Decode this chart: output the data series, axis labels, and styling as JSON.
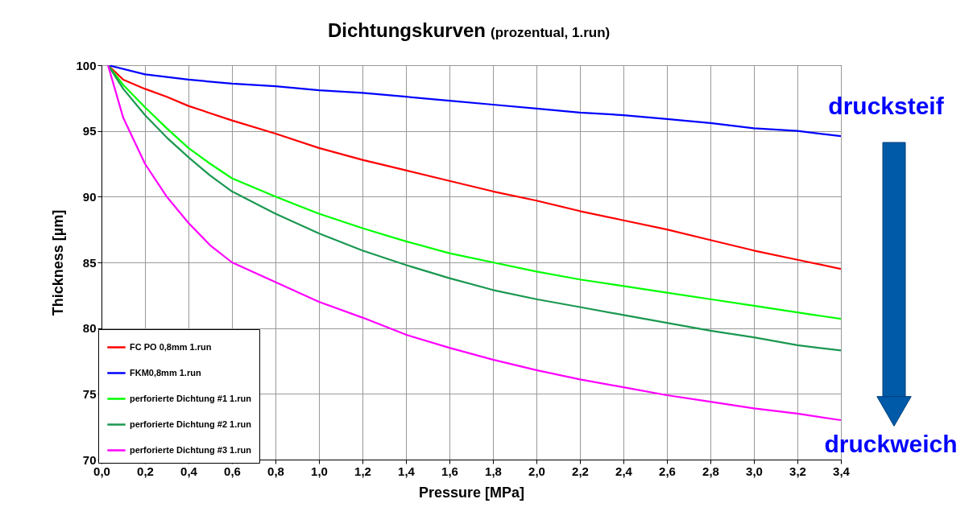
{
  "chart_data": {
    "type": "line",
    "title": "Dichtungskurven",
    "subtitle": "(prozentual, 1.run)",
    "xlabel": "Pressure [MPa]",
    "ylabel": "Thickness [µm]",
    "xlim": [
      0,
      3.4
    ],
    "ylim": [
      70,
      100
    ],
    "xticks": [
      {
        "value": 0,
        "label": "0,0"
      },
      {
        "value": 0.2,
        "label": "0,2"
      },
      {
        "value": 0.4,
        "label": "0,4"
      },
      {
        "value": 0.6,
        "label": "0,6"
      },
      {
        "value": 0.8,
        "label": "0,8"
      },
      {
        "value": 1.0,
        "label": "1,0"
      },
      {
        "value": 1.2,
        "label": "1,2"
      },
      {
        "value": 1.4,
        "label": "1,4"
      },
      {
        "value": 1.6,
        "label": "1,6"
      },
      {
        "value": 1.8,
        "label": "1,8"
      },
      {
        "value": 2.0,
        "label": "2,0"
      },
      {
        "value": 2.2,
        "label": "2,2"
      },
      {
        "value": 2.4,
        "label": "2,4"
      },
      {
        "value": 2.6,
        "label": "2,6"
      },
      {
        "value": 2.8,
        "label": "2,8"
      },
      {
        "value": 3.0,
        "label": "3,0"
      },
      {
        "value": 3.2,
        "label": "3,2"
      },
      {
        "value": 3.4,
        "label": "3,4"
      }
    ],
    "yticks": [
      70,
      75,
      80,
      85,
      90,
      95,
      100
    ],
    "grid": true,
    "legend": "bottom left",
    "marker": "none",
    "line_style": "solid",
    "annotations": [
      "drucksteif",
      "druckweich"
    ],
    "series": [
      {
        "name": "FC PO 0,8mm 1.run",
        "color": "#ff0000",
        "x": [
          0.03,
          0.1,
          0.2,
          0.3,
          0.4,
          0.6,
          0.8,
          1.0,
          1.2,
          1.4,
          1.6,
          1.8,
          2.0,
          2.2,
          2.4,
          2.6,
          2.8,
          3.0,
          3.2,
          3.4
        ],
        "values": [
          100,
          98.9,
          98.2,
          97.6,
          96.9,
          95.8,
          94.8,
          93.7,
          92.8,
          92.0,
          91.2,
          90.4,
          89.7,
          88.9,
          88.2,
          87.5,
          86.7,
          85.9,
          85.2,
          84.5
        ]
      },
      {
        "name": "FKM0,8mm 1.run",
        "color": "#0000ff",
        "x": [
          0.03,
          0.2,
          0.4,
          0.6,
          0.8,
          1.0,
          1.2,
          1.4,
          1.6,
          1.8,
          2.0,
          2.2,
          2.4,
          2.6,
          2.8,
          3.0,
          3.2,
          3.4
        ],
        "values": [
          100,
          99.3,
          98.9,
          98.6,
          98.4,
          98.1,
          97.9,
          97.6,
          97.3,
          97.0,
          96.7,
          96.4,
          96.2,
          95.9,
          95.6,
          95.2,
          95.0,
          94.6
        ]
      },
      {
        "name": "perforierte Dichtung #1 1.run",
        "color": "#00ff00",
        "x": [
          0.03,
          0.1,
          0.2,
          0.3,
          0.4,
          0.5,
          0.6,
          0.8,
          1.0,
          1.2,
          1.4,
          1.6,
          1.8,
          2.0,
          2.2,
          2.4,
          2.6,
          2.8,
          3.0,
          3.2,
          3.4
        ],
        "values": [
          100,
          98.5,
          96.8,
          95.2,
          93.7,
          92.5,
          91.4,
          90.0,
          88.7,
          87.6,
          86.6,
          85.7,
          85.0,
          84.3,
          83.7,
          83.2,
          82.7,
          82.2,
          81.7,
          81.2,
          80.7
        ]
      },
      {
        "name": "perforierte Dichtung #2 1.run",
        "color": "#1a9850",
        "x": [
          0.03,
          0.1,
          0.2,
          0.3,
          0.4,
          0.5,
          0.6,
          0.8,
          1.0,
          1.2,
          1.4,
          1.6,
          1.8,
          2.0,
          2.2,
          2.4,
          2.6,
          2.8,
          3.0,
          3.2,
          3.4
        ],
        "values": [
          100,
          98.2,
          96.2,
          94.5,
          93.0,
          91.6,
          90.4,
          88.7,
          87.2,
          85.9,
          84.8,
          83.8,
          82.9,
          82.2,
          81.6,
          81.0,
          80.4,
          79.8,
          79.3,
          78.7,
          78.3
        ]
      },
      {
        "name": "perforierte Dichtung #3 1.run",
        "color": "#ff00ff",
        "x": [
          0.03,
          0.1,
          0.2,
          0.3,
          0.4,
          0.5,
          0.6,
          0.8,
          1.0,
          1.2,
          1.4,
          1.6,
          1.8,
          2.0,
          2.2,
          2.4,
          2.6,
          2.8,
          3.0,
          3.2,
          3.4
        ],
        "values": [
          100,
          96.0,
          92.5,
          90.0,
          88.0,
          86.3,
          85.0,
          83.5,
          82.0,
          80.8,
          79.5,
          78.5,
          77.6,
          76.8,
          76.1,
          75.5,
          74.9,
          74.4,
          73.9,
          73.5,
          73.0
        ]
      }
    ]
  }
}
